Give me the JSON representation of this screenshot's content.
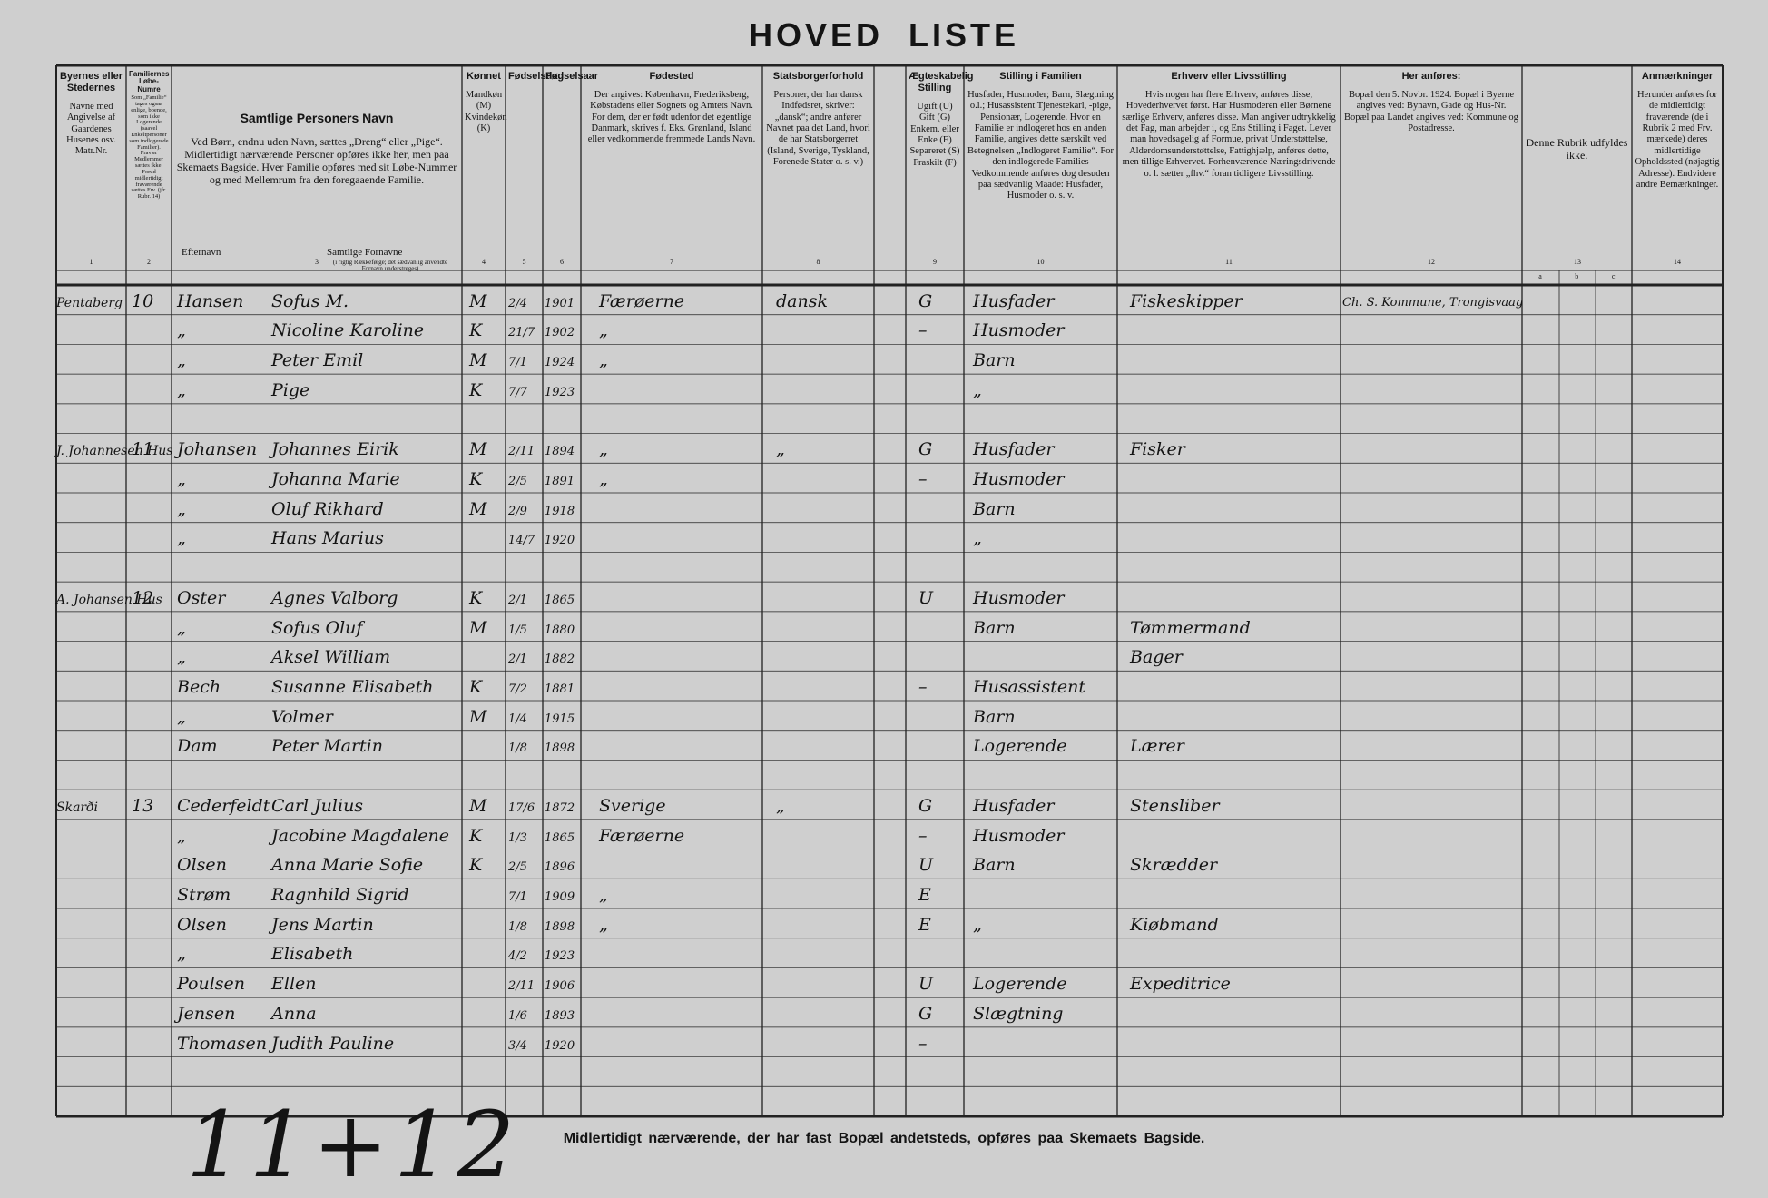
{
  "title": "HOVED LISTE",
  "columns": [
    {
      "number": "1",
      "title": "Byernes eller Stedernes",
      "text": "Navne med Angivelse af Gaardenes Husenes osv. Matr.Nr."
    },
    {
      "number": "2",
      "title": "Familiernes Løbe-Numre",
      "text": "Som „Familie“ tages ogsaa enlige, boende, som ikke Logerende (saavel Enkeltpersoner som indlogerede Familier). Fravær Medlemmer sættes ikke. Forud midlertidigt fraværende sættes Frv. (jfr. Rubr. 14)"
    },
    {
      "number": "3",
      "title": "Samtlige Personers Navn",
      "text": "Ved Børn, endnu uden Navn, sættes „Dreng“ eller „Pige“. Midlertidigt nærværende Personer opføres ikke her, men paa Skemaets Bagside. Hver Familie opføres med sit Løbe-Nummer og med Mellemrum fra den foregaaende Familie."
    },
    {
      "number": "4",
      "title": "Kønnet",
      "text": "Mandkøn (M) Kvindekøn (K)"
    },
    {
      "number": "5",
      "title": "Fødselsdag",
      "text": ""
    },
    {
      "number": "6",
      "title": "Fødselsaar",
      "text": ""
    },
    {
      "number": "7",
      "title": "Fødested",
      "text": "Der angives: København, Frederiksberg, Købstadens eller Sognets og Amtets Navn. For dem, der er født udenfor det egentlige Danmark, skrives f. Eks. Grønland, Island eller vedkommende fremmede Lands Navn."
    },
    {
      "number": "8",
      "title": "Statsborgerforhold",
      "text": "Personer, der har dansk Indfødsret, skriver: „dansk“; andre anfører Navnet paa det Land, hvori de har Statsborgerret (Island, Sverige, Tyskland, Forenede Stater o. s. v.)"
    },
    {
      "number": "9",
      "title": "Ægteskabelig Stilling",
      "text": "Ugift (U) Gift (G) Enkem. eller Enke (E) Separeret (S) Fraskilt (F)"
    },
    {
      "number": "10",
      "title": "Stilling i Familien",
      "text": "Husfader, Husmoder; Barn, Slægtning o.l.; Husassistent Tjenestekarl, -pige, Pensionær, Logerende. Hvor en Familie er indlogeret hos en anden Familie, angives dette særskilt ved Betegnelsen „Indlogeret Familie“. For den indlogerede Families Vedkommende anføres dog desuden paa sædvanlig Maade: Husfader, Husmoder o. s. v."
    },
    {
      "number": "11",
      "title": "Erhverv eller Livsstilling",
      "text": "Hvis nogen har flere Erhverv, anføres disse, Hovederhvervet først. Har Husmoderen eller Børnene særlige Erhverv, anføres disse. Man angiver udtrykkelig det Fag, man arbejder i, og Ens Stilling i Faget. Lever man hovedsagelig af Formue, privat Understøttelse, Alderdomsunderstøttelse, Fattighjælp, anføres dette, men tillige Erhvervet. Forhenværende Næringsdrivende o. l. sætter „fhv.“ foran tidligere Livsstilling."
    },
    {
      "number": "12",
      "title": "Her anføres:",
      "text": "Bopæl den 5. Novbr. 1924. Bopæl i Byerne angives ved: Bynavn, Gade og Hus-Nr. Bopæl paa Landet angives ved: Kommune og Postadresse."
    },
    {
      "number": "13",
      "title": "",
      "text": "Denne Rubrik udfyldes ikke."
    },
    {
      "number": "14",
      "title": "Anmærkninger",
      "text": "Herunder anføres for de midlertidigt fraværende (de i Rubrik 2 med Frv. mærkede) deres midlertidige Opholdssted (nøjagtig Adresse). Endvidere andre Bemærkninger."
    }
  ],
  "subheaders": {
    "surname": "Efternavn",
    "given": "Samtlige Fornavne",
    "given_note": "(i rigtig Rækkefølge; det sædvanlig anvendte Fornavn understreges)"
  },
  "col13_sub": [
    "a",
    "b",
    "c"
  ],
  "rows": [
    {
      "place": "Pentaberg",
      "no": "10",
      "surname": "Hansen",
      "given": "Sofus M.",
      "sex": "M",
      "day": "2/4",
      "year": "1901",
      "birthplace": "Færøerne",
      "citizenship": "dansk",
      "marital": "G",
      "position": "Husfader",
      "occupation": "Fiskeskipper",
      "residence": "Ch. S. Kommune, Trongisvaag"
    },
    {
      "surname": "„",
      "given": "Nicoline Karoline",
      "sex": "K",
      "day": "21/7",
      "year": "1902",
      "birthplace": "„",
      "marital": "–",
      "position": "Husmoder"
    },
    {
      "surname": "„",
      "given": "Peter Emil",
      "sex": "M",
      "day": "7/1",
      "year": "1924",
      "birthplace": "„",
      "position": "Barn"
    },
    {
      "surname": "„",
      "given": "Pige",
      "sex": "K",
      "day": "7/7",
      "year": "1923",
      "position": "„"
    },
    {},
    {
      "place": "J. Johannesen Hus",
      "no": "11",
      "surname": "Johansen",
      "given": "Johannes Eirik",
      "sex": "M",
      "day": "2/11",
      "year": "1894",
      "birthplace": "„",
      "citizenship": "„",
      "marital": "G",
      "position": "Husfader",
      "occupation": "Fisker"
    },
    {
      "surname": "„",
      "given": "Johanna Marie",
      "sex": "K",
      "day": "2/5",
      "year": "1891",
      "birthplace": "„",
      "marital": "–",
      "position": "Husmoder"
    },
    {
      "surname": "„",
      "given": "Oluf Rikhard",
      "sex": "M",
      "day": "2/9",
      "year": "1918",
      "position": "Barn"
    },
    {
      "surname": "„",
      "given": "Hans Marius",
      "day": "14/7",
      "year": "1920",
      "position": "„"
    },
    {},
    {
      "place": "A. Johansen Hus",
      "no": "12",
      "surname": "Oster",
      "given": "Agnes Valborg",
      "sex": "K",
      "day": "2/1",
      "year": "1865",
      "marital": "U",
      "position": "Husmoder"
    },
    {
      "surname": "„",
      "given": "Sofus Oluf",
      "sex": "M",
      "day": "1/5",
      "year": "1880",
      "position": "Barn",
      "occupation": "Tømmermand"
    },
    {
      "surname": "„",
      "given": "Aksel William",
      "day": "2/1",
      "year": "1882",
      "occupation": "Bager"
    },
    {
      "surname": "Bech",
      "given": "Susanne Elisabeth",
      "sex": "K",
      "day": "7/2",
      "year": "1881",
      "marital": "–",
      "position": "Husassistent"
    },
    {
      "surname": "„",
      "given": "Volmer",
      "sex": "M",
      "day": "1/4",
      "year": "1915",
      "position": "Barn"
    },
    {
      "surname": "Dam",
      "given": "Peter Martin",
      "day": "1/8",
      "year": "1898",
      "position": "Logerende",
      "occupation": "Lærer"
    },
    {},
    {
      "place": "Skarði",
      "no": "13",
      "surname": "Cederfeldt",
      "given": "Carl Julius",
      "sex": "M",
      "day": "17/6",
      "year": "1872",
      "birthplace": "Sverige",
      "citizenship": "„",
      "marital": "G",
      "position": "Husfader",
      "occupation": "Stensliber"
    },
    {
      "surname": "„",
      "given": "Jacobine Magdalene",
      "sex": "K",
      "day": "1/3",
      "year": "1865",
      "birthplace": "Færøerne",
      "marital": "–",
      "position": "Husmoder"
    },
    {
      "surname": "Olsen",
      "given": "Anna Marie Sofie",
      "sex": "K",
      "day": "2/5",
      "year": "1896",
      "marital": "U",
      "position": "Barn",
      "occupation": "Skrædder"
    },
    {
      "surname": "Strøm",
      "given": "Ragnhild Sigrid",
      "day": "7/1",
      "year": "1909",
      "birthplace": "„",
      "marital": "E"
    },
    {
      "surname": "Olsen",
      "given": "Jens Martin",
      "day": "1/8",
      "year": "1898",
      "birthplace": "„",
      "marital": "E",
      "position": "„",
      "occupation": "Kiøbmand"
    },
    {
      "surname": "„",
      "given": "Elisabeth",
      "day": "4/2",
      "year": "1923"
    },
    {
      "surname": "Poulsen",
      "given": "Ellen",
      "day": "2/11",
      "year": "1906",
      "marital": "U",
      "position": "Logerende",
      "occupation": "Expeditrice"
    },
    {
      "surname": "Jensen",
      "given": "Anna",
      "day": "1/6",
      "year": "1893",
      "marital": "G",
      "position": "Slægtning"
    },
    {
      "surname": "Thomasen",
      "given": "Judith Pauline",
      "day": "3/4",
      "year": "1920",
      "marital": "–"
    },
    {},
    {}
  ],
  "footer": "Midlertidigt nærværende, der har fast Bopæl andetsteds, opføres paa Skemaets Bagside.",
  "sheet_note": "11+12"
}
